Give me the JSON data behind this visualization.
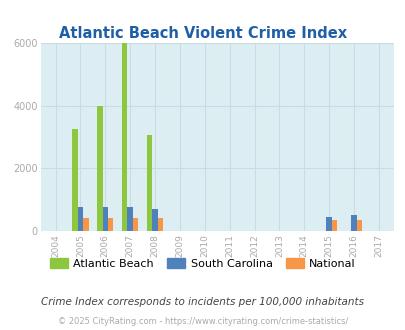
{
  "title": "Atlantic Beach Violent Crime Index",
  "years": [
    2004,
    2005,
    2006,
    2007,
    2008,
    2009,
    2010,
    2011,
    2012,
    2013,
    2014,
    2015,
    2016,
    2017
  ],
  "atlantic_beach": [
    0,
    3250,
    4000,
    6000,
    3050,
    0,
    0,
    0,
    0,
    0,
    0,
    0,
    0,
    0
  ],
  "south_carolina": [
    0,
    750,
    750,
    750,
    700,
    0,
    0,
    0,
    0,
    0,
    0,
    440,
    500,
    0
  ],
  "national": [
    0,
    430,
    430,
    430,
    430,
    0,
    0,
    0,
    0,
    0,
    0,
    340,
    340,
    0
  ],
  "color_ab": "#8dc63f",
  "color_sc": "#4f81bd",
  "color_nat": "#f79646",
  "bg_color": "#ddeef3",
  "fig_color": "#ffffff",
  "ylim": [
    0,
    6000
  ],
  "yticks": [
    0,
    2000,
    4000,
    6000
  ],
  "bar_width": 0.22,
  "subtitle": "Crime Index corresponds to incidents per 100,000 inhabitants",
  "footer": "© 2025 CityRating.com - https://www.cityrating.com/crime-statistics/",
  "legend_labels": [
    "Atlantic Beach",
    "South Carolina",
    "National"
  ],
  "title_color": "#1f5fa6",
  "subtitle_color": "#444444",
  "footer_color": "#aaaaaa",
  "grid_color": "#c8dde2",
  "tick_color": "#aaaaaa"
}
